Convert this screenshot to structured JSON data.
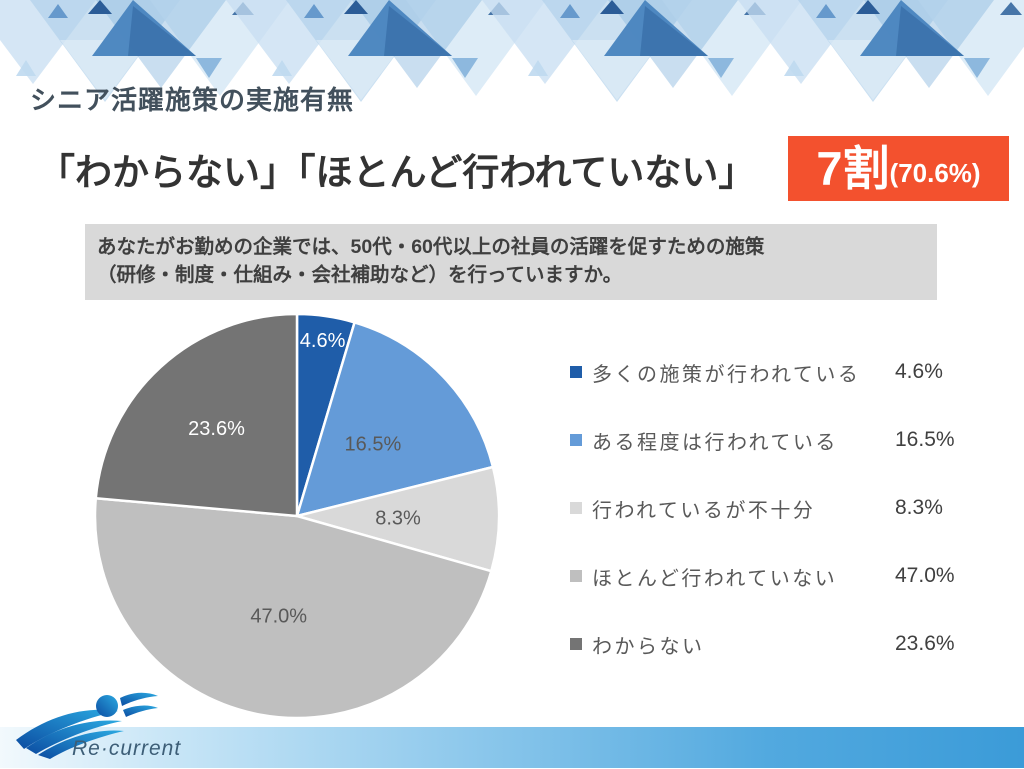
{
  "slide": {
    "title": "シニア活躍施策の実施有無",
    "headline": {
      "quote": "「わからない」「ほとんど行われていない」",
      "badge_main": "7割",
      "badge_sub": "(70.6%)"
    },
    "question_box": {
      "line1": "あなたがお勤めの企業では、50代・60代以上の社員の活躍を促すための施策",
      "line2": "（研修・制度・仕組み・会社補助など）を行っていますか。"
    },
    "footer": {
      "logo_text": "Re·current"
    }
  },
  "colors": {
    "badge_bg": "#F3512E",
    "question_box_bg": "#D9D9D9",
    "title_text": "#42505C",
    "headline_text": "#333333",
    "legend_label": "#595959",
    "legend_value": "#404040",
    "pie_border": "#FFFFFF",
    "footer_gradient_left": "#F2F9FD",
    "footer_gradient_right": "#3B9BD8"
  },
  "chart_data": {
    "type": "pie",
    "title": "シニア活躍施策の実施有無",
    "unit": "%",
    "start_angle_deg": 0,
    "direction": "clockwise",
    "legend_position": "right",
    "categories": [
      "多くの施策が行われている",
      "ある程度は行われている",
      "行われているが不十分",
      "ほとんど行われていない",
      "わからない"
    ],
    "values": [
      4.6,
      16.5,
      8.3,
      47.0,
      23.6
    ],
    "slices": [
      {
        "label": "多くの施策が行われている",
        "value": 4.6,
        "display": "4.6%",
        "color": "#1F5DA9",
        "label_color": "#FFFFFF",
        "label_radius_frac": 0.88
      },
      {
        "label": "ある程度は行われている",
        "value": 16.5,
        "display": "16.5%",
        "color": "#649BD8",
        "label_color": "#595959",
        "label_radius_frac": 0.52
      },
      {
        "label": "行われているが不十分",
        "value": 8.3,
        "display": "8.3%",
        "color": "#D9D9D9",
        "label_color": "#595959",
        "label_radius_frac": 0.5
      },
      {
        "label": "ほとんど行われていない",
        "value": 47.0,
        "display": "47.0%",
        "color": "#BFBFBF",
        "label_color": "#595959",
        "label_radius_frac": 0.5
      },
      {
        "label": "わからない",
        "value": 23.6,
        "display": "23.6%",
        "color": "#747474",
        "label_color": "#FFFFFF",
        "label_radius_frac": 0.59
      }
    ],
    "annotation": {
      "label": "わからない＋ほとんど行われていない",
      "display": "7割(70.6%)",
      "value": 70.6
    }
  }
}
